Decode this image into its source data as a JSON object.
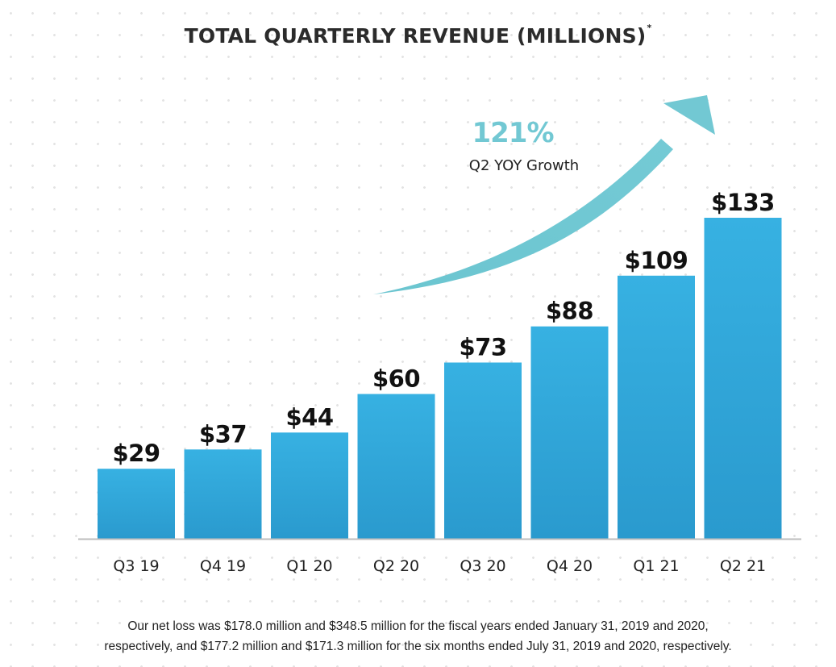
{
  "chart_data": {
    "type": "bar",
    "title": "TOTAL QUARTERLY REVENUE (MILLIONS)",
    "title_marker": "*",
    "xlabel": "",
    "ylabel": "",
    "categories": [
      "Q3 19",
      "Q4 19",
      "Q1 20",
      "Q2 20",
      "Q3 20",
      "Q4 20",
      "Q1 21",
      "Q2 21"
    ],
    "values": [
      29,
      37,
      44,
      60,
      73,
      88,
      109,
      133
    ],
    "data_labels": [
      "$29",
      "$37",
      "$44",
      "$60",
      "$73",
      "$88",
      "$109",
      "$133"
    ],
    "units": "USD millions",
    "ylim": [
      0,
      133
    ],
    "grid": false,
    "legend": "none",
    "bar_color": "#35ADE0",
    "annotations": [
      {
        "type": "growth-arrow",
        "value": "121%",
        "caption": "Q2 YOY Growth",
        "color": "#72C8D3"
      }
    ]
  },
  "footnote": {
    "line1": "Our net loss was $178.0 million and $348.5 million for the fiscal years ended January 31, 2019 and 2020,",
    "line2": "respectively, and $177.2 million and $171.3 million for the six months ended July 31, 2019 and 2020, respectively."
  }
}
